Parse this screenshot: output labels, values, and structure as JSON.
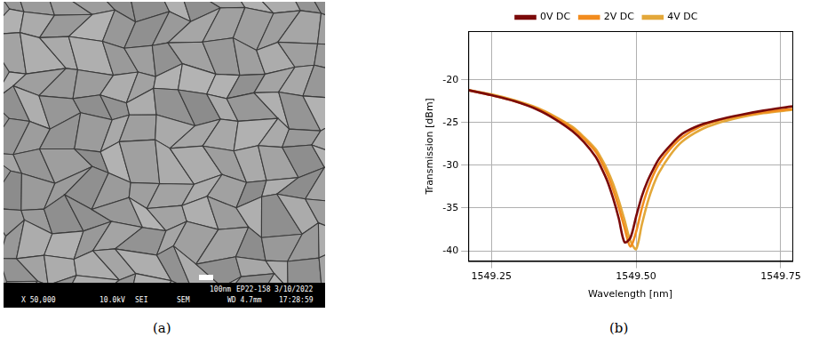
{
  "panel_a": {
    "caption": "(a)",
    "info_bar": {
      "top": [
        "100nm",
        "EP22-158",
        "3/10/2022"
      ],
      "bottom": [
        "X 50,000",
        "10.0kV",
        "SEI",
        "SEM",
        "WD 4.7mm",
        "17:28:59"
      ]
    }
  },
  "chart_data": {
    "type": "line",
    "caption": "(b)",
    "x_label": "Wavelength [nm]",
    "y_label": "Transmission [dBm]",
    "x": [
      1549.21,
      1549.25,
      1549.29,
      1549.33,
      1549.36,
      1549.39,
      1549.41,
      1549.43,
      1549.44,
      1549.45,
      1549.46,
      1549.47,
      1549.48,
      1549.49,
      1549.5,
      1549.51,
      1549.52,
      1549.53,
      1549.54,
      1549.56,
      1549.58,
      1549.61,
      1549.64,
      1549.68,
      1549.72,
      1549.77
    ],
    "series": [
      {
        "name": "0V DC",
        "color": "#7b0a0a",
        "values": [
          -21.2,
          -21.8,
          -22.5,
          -23.5,
          -24.6,
          -26.0,
          -27.3,
          -29.0,
          -30.3,
          -31.8,
          -33.8,
          -36.2,
          -39.0,
          -38.5,
          -36.0,
          -33.6,
          -31.8,
          -30.4,
          -29.2,
          -27.6,
          -26.3,
          -25.3,
          -24.7,
          -24.1,
          -23.6,
          -23.1
        ]
      },
      {
        "name": "2V DC",
        "color": "#f28c1e",
        "values": [
          -21.2,
          -21.8,
          -22.5,
          -23.4,
          -24.4,
          -25.7,
          -26.9,
          -28.4,
          -29.6,
          -31.0,
          -32.8,
          -34.9,
          -37.3,
          -39.5,
          -37.8,
          -35.0,
          -32.8,
          -31.1,
          -29.8,
          -28.0,
          -26.7,
          -25.5,
          -24.8,
          -24.2,
          -23.8,
          -23.4
        ]
      },
      {
        "name": "4V DC",
        "color": "#e3a83a",
        "values": [
          -21.2,
          -21.7,
          -22.4,
          -23.3,
          -24.3,
          -25.5,
          -26.7,
          -28.1,
          -29.2,
          -30.5,
          -32.1,
          -34.1,
          -36.4,
          -38.8,
          -39.8,
          -36.9,
          -34.3,
          -32.3,
          -30.8,
          -28.7,
          -27.2,
          -25.9,
          -25.1,
          -24.4,
          -23.9,
          -23.5
        ]
      }
    ],
    "xlim": [
      1549.21,
      1549.77
    ],
    "xticks": [
      1549.25,
      {
        "value": 1549.5,
        "label": "1549.50"
      },
      1549.75
    ],
    "ylim": [
      -41.2,
      -14.3
    ],
    "yticks": [
      -40,
      -35,
      -30,
      -25,
      -20
    ],
    "grid": true,
    "legend": "top"
  }
}
